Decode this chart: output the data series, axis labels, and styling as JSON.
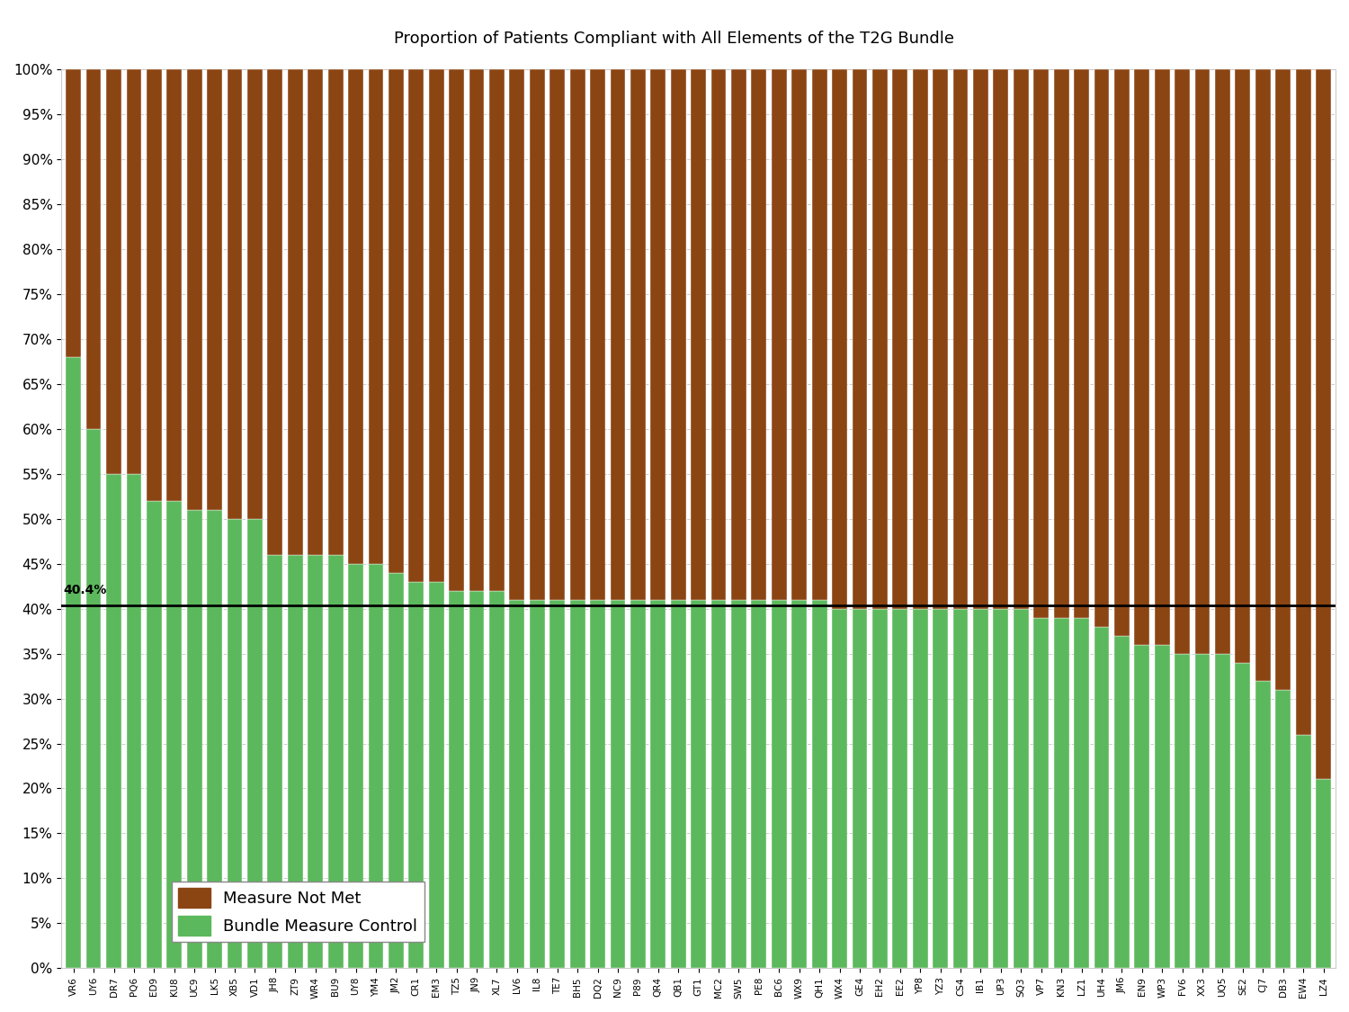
{
  "categories": [
    "VR6",
    "UY6",
    "DR7",
    "PQ6",
    "ED9",
    "KU8",
    "UC9",
    "LK5",
    "XB5",
    "VD1",
    "JH8",
    "ZT9",
    "WR4",
    "BU9",
    "UY8",
    "YM4",
    "JM2",
    "CR1",
    "EM3",
    "TZ5",
    "JN9",
    "XL7",
    "LV6",
    "IL8",
    "TE7",
    "BH5",
    "DQ2",
    "NC9",
    "P89",
    "QR4",
    "QB1",
    "GT1",
    "MC2",
    "SW5",
    "PE8",
    "BC6",
    "WX9",
    "QH1",
    "WX4",
    "GE4",
    "EH2",
    "EE2",
    "YP8",
    "YZ3",
    "CS4",
    "IB1",
    "UP3",
    "SQ3",
    "VP7",
    "KN3",
    "LZ1",
    "UH4",
    "JM6",
    "EN9",
    "WP3",
    "FV6",
    "XX3",
    "UQ5",
    "SE2",
    "CJ7",
    "DB3",
    "EW4",
    "LZ4"
  ],
  "green_values": [
    68,
    60,
    55,
    55,
    52,
    52,
    51,
    51,
    50,
    50,
    46,
    46,
    46,
    46,
    45,
    45,
    44,
    43,
    43,
    42,
    42,
    42,
    41,
    41,
    41,
    41,
    41,
    41,
    41,
    41,
    41,
    41,
    41,
    41,
    41,
    41,
    41,
    41,
    40,
    40,
    40,
    40,
    40,
    40,
    40,
    40,
    40,
    40,
    39,
    39,
    39,
    38,
    37,
    36,
    36,
    35,
    35,
    35,
    34,
    32,
    31,
    26,
    21
  ],
  "brown_values": [
    32,
    40,
    45,
    45,
    48,
    48,
    49,
    49,
    50,
    50,
    54,
    54,
    54,
    54,
    55,
    55,
    56,
    57,
    57,
    58,
    58,
    58,
    59,
    59,
    59,
    59,
    59,
    59,
    59,
    59,
    59,
    59,
    59,
    59,
    59,
    59,
    59,
    59,
    60,
    60,
    60,
    60,
    60,
    60,
    60,
    60,
    60,
    60,
    61,
    61,
    61,
    62,
    63,
    64,
    64,
    65,
    65,
    65,
    66,
    68,
    69,
    74,
    79
  ],
  "green_color": "#5cb85c",
  "brown_color": "#8B4513",
  "reference_line": 40.4,
  "reference_label": "40.4%",
  "title": "Proportion of Patients Compliant with All Elements of the T2G Bundle",
  "ylim": [
    0,
    100
  ],
  "yticks": [
    0,
    5,
    10,
    15,
    20,
    25,
    30,
    35,
    40,
    45,
    50,
    55,
    60,
    65,
    70,
    75,
    80,
    85,
    90,
    95,
    100
  ],
  "ytick_labels": [
    "0%",
    "5%",
    "10%",
    "15%",
    "20%",
    "25%",
    "30%",
    "35%",
    "40%",
    "45%",
    "50%",
    "55%",
    "60%",
    "65%",
    "70%",
    "75%",
    "80%",
    "85%",
    "90%",
    "95%",
    "100%"
  ],
  "legend_not_met": "Measure Not Met",
  "legend_control": "Bundle Measure Control",
  "background_color": "#ffffff",
  "bar_width": 0.75,
  "grid_color": "#cccccc",
  "grid_linestyle": "--"
}
